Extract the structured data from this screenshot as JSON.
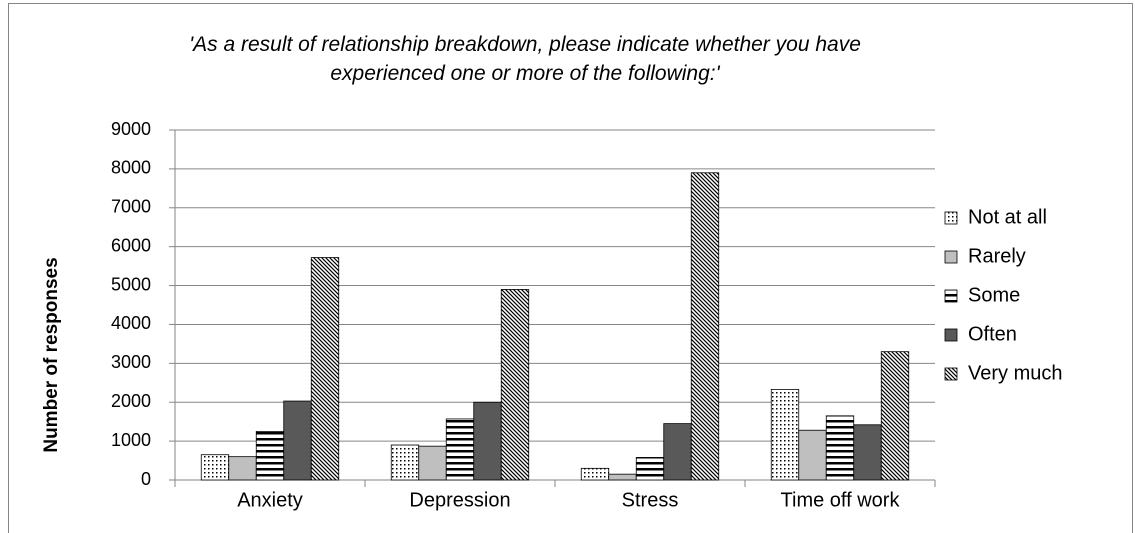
{
  "chart_data": {
    "type": "bar",
    "title": "'As a result of relationship breakdown, please indicate whether you have experienced one or more of the following:'",
    "y_label": "Number of responses",
    "categories": [
      "Anxiety",
      "Depression",
      "Stress",
      "Time off work"
    ],
    "series": [
      {
        "name": "Not at all",
        "color": "#ffffff",
        "pattern": "dots",
        "values": [
          650,
          900,
          300,
          2330
        ]
      },
      {
        "name": "Rarely",
        "color": "#bfbfbf",
        "pattern": "solid",
        "values": [
          600,
          870,
          150,
          1280
        ]
      },
      {
        "name": "Some",
        "color": "#ffffff",
        "pattern": "horizontal",
        "values": [
          1250,
          1570,
          580,
          1650
        ]
      },
      {
        "name": "Often",
        "color": "#595959",
        "pattern": "solid",
        "values": [
          2030,
          2000,
          1450,
          1420
        ]
      },
      {
        "name": "Very much",
        "color": "#ffffff",
        "pattern": "diagonal",
        "values": [
          5720,
          4900,
          7900,
          3300
        ]
      }
    ],
    "ylim": [
      0,
      9000
    ],
    "yticks": [
      0,
      1000,
      2000,
      3000,
      4000,
      5000,
      6000,
      7000,
      8000,
      9000
    ],
    "grid": true,
    "legend": "right"
  }
}
